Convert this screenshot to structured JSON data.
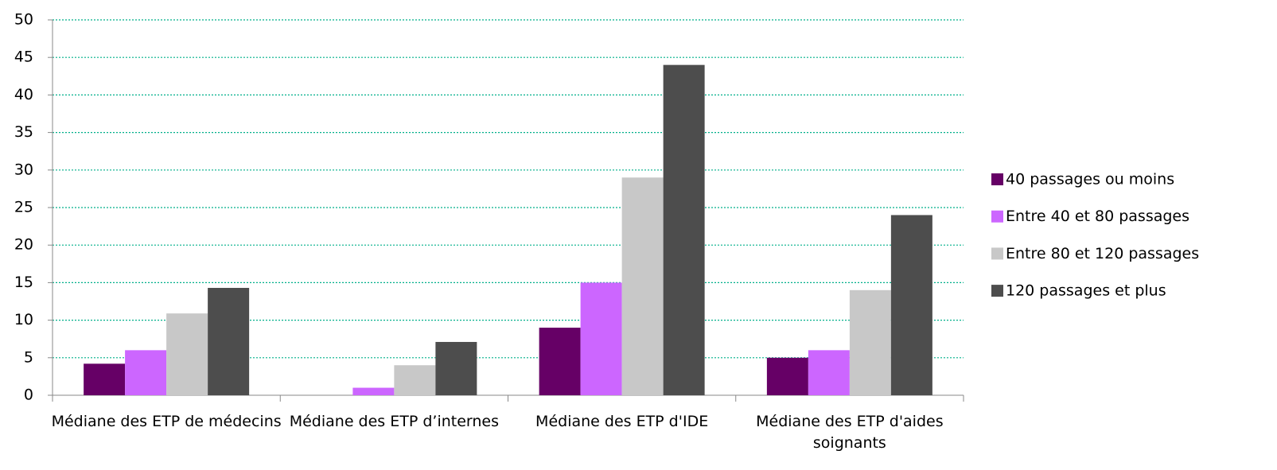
{
  "chart_data": {
    "type": "bar",
    "categories": [
      "Médiane des ETP de médecins",
      "Médiane des ETP d’internes",
      "Médiane des ETP d'IDE",
      "Médiane des ETP d'aides soignants"
    ],
    "series": [
      {
        "name": "40 passages ou moins",
        "color": "#660066",
        "values": [
          4.2,
          0,
          9,
          5
        ]
      },
      {
        "name": "Entre 40 et 80 passages",
        "color": "#cc66ff",
        "values": [
          6,
          1,
          15,
          6
        ]
      },
      {
        "name": "Entre 80 et 120 passages",
        "color": "#c8c8c8",
        "values": [
          10.9,
          4,
          29,
          14
        ]
      },
      {
        "name": "120 passages et plus",
        "color": "#4d4d4d",
        "values": [
          14.3,
          7.1,
          44,
          24
        ]
      }
    ],
    "ylim": [
      0,
      50
    ],
    "yticks": [
      0,
      5,
      10,
      15,
      20,
      25,
      30,
      35,
      40,
      45,
      50
    ],
    "grid": true,
    "legend": "right"
  }
}
